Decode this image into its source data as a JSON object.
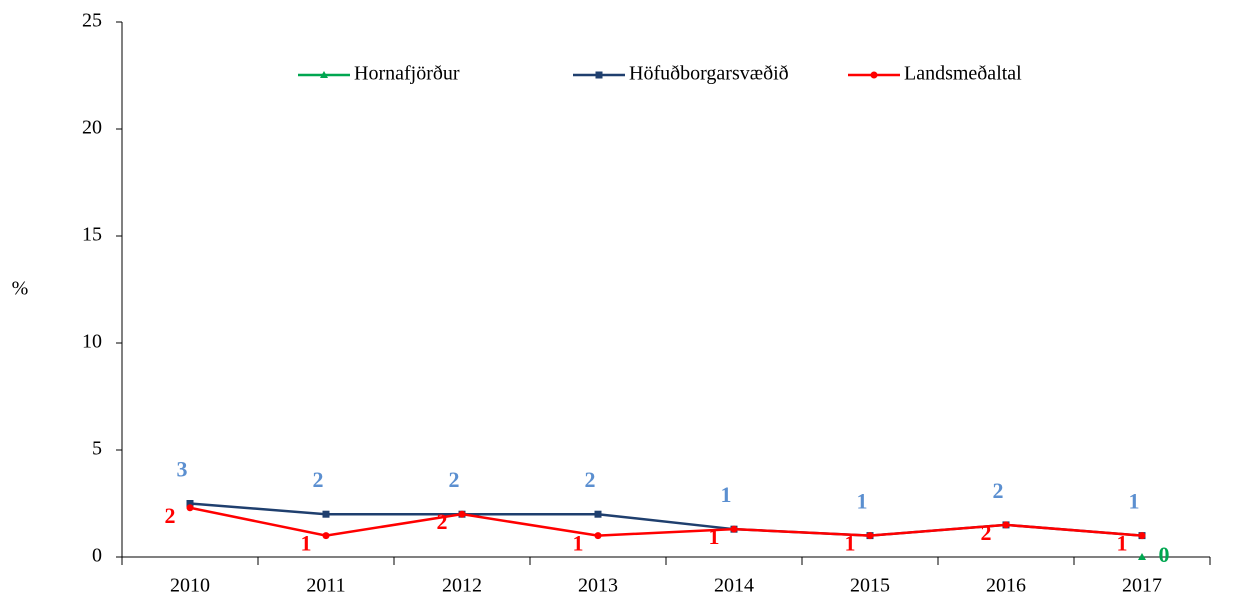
{
  "chart_data": {
    "type": "line",
    "y_label": "%",
    "categories": [
      "2010",
      "2011",
      "2012",
      "2013",
      "2014",
      "2015",
      "2016",
      "2017"
    ],
    "ylim": [
      0,
      25
    ],
    "yticks": [
      0,
      5,
      10,
      15,
      20,
      25
    ],
    "legend": "top",
    "series": [
      {
        "name": "Hornafjörður",
        "color": "#00a650",
        "label_color": "#00a650",
        "marker": "triangle",
        "values": [
          null,
          null,
          null,
          null,
          null,
          null,
          null,
          0
        ],
        "value_labels": [
          null,
          null,
          null,
          null,
          null,
          null,
          null,
          "0"
        ]
      },
      {
        "name": "Höfuðborgarsvæðið",
        "color": "#1f3f6e",
        "label_color": "#5b8fd0",
        "marker": "square",
        "values": [
          2.5,
          2.0,
          2.0,
          2.0,
          1.3,
          1.0,
          1.5,
          1.0
        ],
        "value_labels": [
          "3",
          "2",
          "2",
          "2",
          "1",
          "1",
          "2",
          "1"
        ]
      },
      {
        "name": "Landsmeðaltal",
        "color": "#ff0000",
        "label_color": "#ff0000",
        "marker": "circle",
        "values": [
          2.3,
          1.0,
          2.0,
          1.0,
          1.3,
          1.0,
          1.5,
          1.0
        ],
        "value_labels": [
          "2",
          "1",
          "2",
          "1",
          "1",
          "1",
          "2",
          "1"
        ]
      }
    ]
  }
}
